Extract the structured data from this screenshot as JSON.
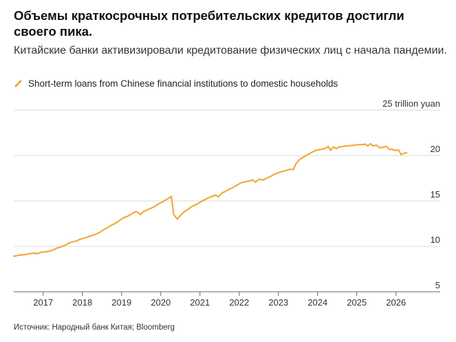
{
  "header": {
    "title": "Объемы краткосрочных потребительских кредитов достигли своего пика.",
    "subtitle": "Китайские банки активизировали кредитование физических лиц с начала пандемии."
  },
  "footer": {
    "source": "Источник: Народный банк Китая; Bloomberg"
  },
  "chart_data": {
    "type": "line",
    "title": "",
    "xlabel": "",
    "ylabel": "",
    "y_unit_label": "25 trillion yuan",
    "xlim": [
      2016.25,
      2026.6
    ],
    "ylim": [
      5,
      25
    ],
    "y_ticks": [
      5,
      10,
      15,
      20
    ],
    "y_tick_labels": [
      "5",
      "10",
      "15",
      "20"
    ],
    "x_ticks": [
      2017,
      2018,
      2019,
      2020,
      2021,
      2022,
      2023,
      2024,
      2025,
      2026
    ],
    "x_tick_labels": [
      "2017",
      "2018",
      "2019",
      "2020",
      "2021",
      "2022",
      "2023",
      "2024",
      "2025",
      "2026"
    ],
    "grid": "horizontal",
    "legend_position": "top-left",
    "series": [
      {
        "name": "Short-term loans from Chinese financial institutions to domestic households",
        "color": "#f4a93a",
        "points": [
          [
            2016.25,
            8.9
          ],
          [
            2016.35,
            9.0
          ],
          [
            2016.45,
            9.05
          ],
          [
            2016.55,
            9.1
          ],
          [
            2016.65,
            9.2
          ],
          [
            2016.75,
            9.25
          ],
          [
            2016.85,
            9.2
          ],
          [
            2016.95,
            9.35
          ],
          [
            2017.05,
            9.4
          ],
          [
            2017.15,
            9.45
          ],
          [
            2017.25,
            9.6
          ],
          [
            2017.35,
            9.8
          ],
          [
            2017.45,
            9.95
          ],
          [
            2017.55,
            10.1
          ],
          [
            2017.65,
            10.35
          ],
          [
            2017.75,
            10.5
          ],
          [
            2017.85,
            10.6
          ],
          [
            2017.95,
            10.8
          ],
          [
            2018.05,
            10.9
          ],
          [
            2018.15,
            11.05
          ],
          [
            2018.25,
            11.2
          ],
          [
            2018.35,
            11.35
          ],
          [
            2018.45,
            11.55
          ],
          [
            2018.55,
            11.85
          ],
          [
            2018.65,
            12.1
          ],
          [
            2018.75,
            12.35
          ],
          [
            2018.85,
            12.55
          ],
          [
            2018.95,
            12.85
          ],
          [
            2019.05,
            13.15
          ],
          [
            2019.15,
            13.3
          ],
          [
            2019.25,
            13.55
          ],
          [
            2019.35,
            13.8
          ],
          [
            2019.42,
            13.75
          ],
          [
            2019.48,
            13.5
          ],
          [
            2019.55,
            13.8
          ],
          [
            2019.65,
            14.0
          ],
          [
            2019.75,
            14.2
          ],
          [
            2019.85,
            14.4
          ],
          [
            2019.95,
            14.7
          ],
          [
            2020.05,
            14.9
          ],
          [
            2020.12,
            15.1
          ],
          [
            2020.2,
            15.3
          ],
          [
            2020.27,
            15.5
          ],
          [
            2020.33,
            13.5
          ],
          [
            2020.42,
            13.0
          ],
          [
            2020.5,
            13.4
          ],
          [
            2020.6,
            13.8
          ],
          [
            2020.7,
            14.1
          ],
          [
            2020.8,
            14.4
          ],
          [
            2020.9,
            14.6
          ],
          [
            2021.0,
            14.85
          ],
          [
            2021.1,
            15.1
          ],
          [
            2021.2,
            15.3
          ],
          [
            2021.3,
            15.5
          ],
          [
            2021.4,
            15.65
          ],
          [
            2021.47,
            15.45
          ],
          [
            2021.55,
            15.85
          ],
          [
            2021.65,
            16.05
          ],
          [
            2021.75,
            16.3
          ],
          [
            2021.85,
            16.5
          ],
          [
            2021.95,
            16.75
          ],
          [
            2022.05,
            17.0
          ],
          [
            2022.15,
            17.1
          ],
          [
            2022.25,
            17.2
          ],
          [
            2022.35,
            17.3
          ],
          [
            2022.42,
            17.05
          ],
          [
            2022.5,
            17.4
          ],
          [
            2022.6,
            17.3
          ],
          [
            2022.7,
            17.5
          ],
          [
            2022.8,
            17.7
          ],
          [
            2022.9,
            17.95
          ],
          [
            2023.0,
            18.1
          ],
          [
            2023.1,
            18.25
          ],
          [
            2023.2,
            18.35
          ],
          [
            2023.3,
            18.5
          ],
          [
            2023.38,
            18.45
          ],
          [
            2023.45,
            19.1
          ],
          [
            2023.55,
            19.6
          ],
          [
            2023.65,
            19.85
          ],
          [
            2023.75,
            20.1
          ],
          [
            2023.85,
            20.35
          ],
          [
            2023.95,
            20.55
          ],
          [
            2024.05,
            20.65
          ],
          [
            2024.12,
            20.7
          ],
          [
            2024.2,
            20.8
          ],
          [
            2024.27,
            21.0
          ],
          [
            2024.33,
            20.55
          ],
          [
            2024.4,
            20.95
          ],
          [
            2024.48,
            20.75
          ],
          [
            2024.55,
            20.95
          ],
          [
            2024.65,
            21.0
          ],
          [
            2024.75,
            21.05
          ],
          [
            2024.85,
            21.1
          ],
          [
            2024.95,
            21.15
          ],
          [
            2025.05,
            21.2
          ],
          [
            2025.15,
            21.2
          ],
          [
            2025.22,
            21.25
          ],
          [
            2025.28,
            21.05
          ],
          [
            2025.35,
            21.3
          ],
          [
            2025.42,
            21.05
          ],
          [
            2025.5,
            21.15
          ],
          [
            2025.58,
            20.85
          ],
          [
            2025.67,
            20.9
          ],
          [
            2025.75,
            21.0
          ],
          [
            2025.83,
            20.7
          ],
          [
            2025.92,
            20.65
          ],
          [
            2026.0,
            20.55
          ],
          [
            2026.07,
            20.6
          ],
          [
            2026.13,
            20.1
          ],
          [
            2026.2,
            20.25
          ],
          [
            2026.27,
            20.3
          ]
        ]
      }
    ]
  }
}
